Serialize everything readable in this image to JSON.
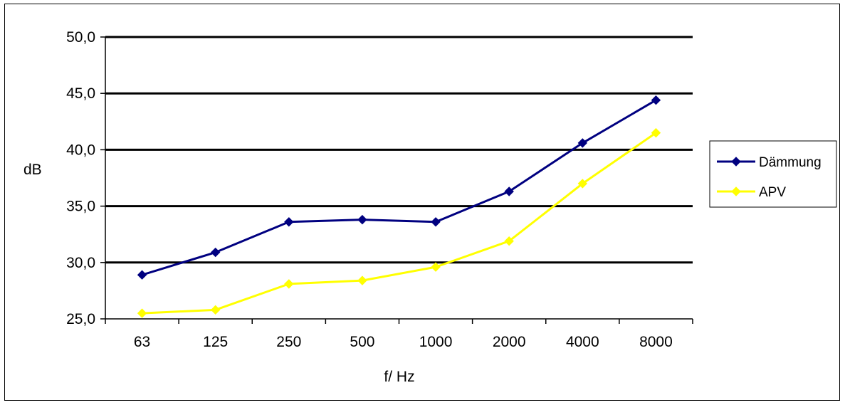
{
  "chart_data": {
    "type": "line",
    "title": "",
    "xlabel": "f/ Hz",
    "ylabel": "dB",
    "categories": [
      "63",
      "125",
      "250",
      "500",
      "1000",
      "2000",
      "4000",
      "8000"
    ],
    "ylim": [
      25.0,
      50.0
    ],
    "yticks": [
      "25,0",
      "30,0",
      "35,0",
      "40,0",
      "45,0",
      "50,0"
    ],
    "ytick_values": [
      25,
      30,
      35,
      40,
      45,
      50
    ],
    "grid": true,
    "legend_position": "right",
    "series": [
      {
        "name": "Dämmung",
        "color": "#000080",
        "marker": "diamond",
        "values": [
          28.9,
          30.9,
          33.6,
          33.8,
          33.6,
          36.3,
          40.6,
          44.4
        ]
      },
      {
        "name": "APV",
        "color": "#FFFF00",
        "marker": "diamond",
        "values": [
          25.5,
          25.8,
          28.1,
          28.4,
          29.6,
          31.9,
          37.0,
          41.5
        ]
      }
    ]
  }
}
